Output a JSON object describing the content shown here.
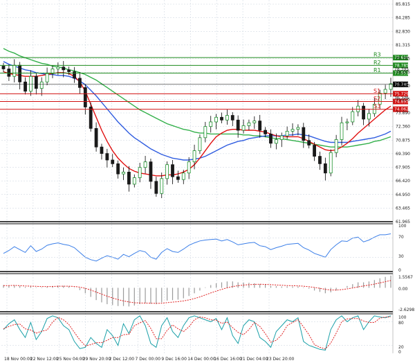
{
  "colors": {
    "background": "#ffffff",
    "grid": "#c8d2dc",
    "bull": "#1a8f2a",
    "bear": "#1a1a1a",
    "ma_fast": "#e01010",
    "ma_mid": "#2f5ce0",
    "ma_slow": "#33b04a",
    "resistance": "#1d8a1d",
    "support": "#d01010",
    "rsi": "#3a7ee8",
    "signal": "#e02020",
    "stoch_main": "#1aa0a8",
    "stoch_signal": "#e02020",
    "current_price": "#000000",
    "frame": "#000000"
  },
  "chart_data": [
    {
      "type": "candlestick",
      "title": "",
      "ylim": [
        61.965,
        85.815
      ],
      "y_ticks": [
        "85.815",
        "84.285",
        "82.830",
        "81.315",
        "79.785",
        "78.255",
        "76.740",
        "75.225",
        "73.890",
        "72.360",
        "70.875",
        "69.390",
        "67.905",
        "66.420",
        "64.950",
        "63.465",
        "61.965"
      ],
      "x_ticks": [
        "18 Nov 00:00",
        "22 Nov 12:00",
        "25 Nov 04:00",
        "29 Nov 20:00",
        "2 Dec 12:00",
        "7 Dec 00:00",
        "9 Dec 16:00",
        "14 Dec 00:00",
        "16 Dec 16:00",
        "21 Dec 04:00",
        "23 Dec 20:00"
      ],
      "levels": [
        {
          "name": "R3",
          "value": 79.618,
          "kind": "resistance",
          "tag": "79.618"
        },
        {
          "name": "R2",
          "value": 78.785,
          "kind": "resistance",
          "tag": "78.785"
        },
        {
          "name": "R1",
          "value": 77.951,
          "kind": "resistance",
          "tag": "77.951"
        },
        {
          "name": "S1",
          "value": 75.729,
          "kind": "support",
          "tag": "75.729"
        },
        {
          "name": "S2",
          "value": 74.895,
          "kind": "support",
          "tag": "74.895"
        },
        {
          "name": "S3",
          "value": 74.062,
          "kind": "support",
          "tag": "74.062"
        }
      ],
      "current_price": {
        "value": 76.74,
        "tag": "76.740"
      },
      "extra_tags": [
        "78.395",
        "75.275"
      ],
      "close_path": [
        78.4,
        77.6,
        78.8,
        77.0,
        76.0,
        77.6,
        76.3,
        77.0,
        77.9,
        78.4,
        78.6,
        78.3,
        78.1,
        77.4,
        76.4,
        74.3,
        72.0,
        70.0,
        69.3,
        68.6,
        68.2,
        67.1,
        67.3,
        66.0,
        66.7,
        67.8,
        68.4,
        66.3,
        65.0,
        66.6,
        68.1,
        66.8,
        66.5,
        67.2,
        68.4,
        69.6,
        71.0,
        72.2,
        72.7,
        73.2,
        72.9,
        73.4,
        72.9,
        71.8,
        72.3,
        72.6,
        72.8,
        71.8,
        71.4,
        70.4,
        70.8,
        71.2,
        71.7,
        71.9,
        72.1,
        70.7,
        70.2,
        69.0,
        68.2,
        67.2,
        69.4,
        70.8,
        72.6,
        72.7,
        73.8,
        74.4,
        73.0,
        73.6,
        74.6,
        75.8,
        76.2,
        76.8
      ],
      "ma_fast": [
        78.1,
        77.9,
        77.8,
        77.7,
        77.6,
        77.6,
        77.6,
        77.7,
        77.8,
        77.9,
        78.0,
        78.0,
        77.9,
        77.6,
        77.0,
        76.0,
        74.6,
        73.2,
        71.8,
        70.6,
        69.6,
        68.8,
        68.2,
        67.7,
        67.4,
        67.2,
        67.1,
        67.0,
        66.9,
        66.9,
        67.0,
        67.0,
        67.1,
        67.3,
        67.6,
        68.1,
        68.8,
        69.6,
        70.4,
        71.1,
        71.5,
        71.8,
        71.9,
        71.9,
        71.8,
        71.8,
        71.8,
        71.7,
        71.6,
        71.4,
        71.2,
        71.1,
        71.1,
        71.1,
        71.1,
        70.9,
        70.6,
        70.3,
        70.0,
        69.7,
        69.6,
        69.7,
        70.0,
        70.4,
        70.9,
        71.5,
        72.0,
        72.5,
        73.0,
        73.5,
        74.0,
        74.4
      ],
      "ma_mid": [
        79.2,
        78.9,
        78.7,
        78.5,
        78.3,
        78.2,
        78.0,
        77.9,
        77.8,
        77.8,
        77.7,
        77.7,
        77.6,
        77.4,
        77.1,
        76.7,
        76.1,
        75.5,
        74.8,
        74.1,
        73.4,
        72.7,
        72.1,
        71.5,
        71.0,
        70.6,
        70.2,
        69.8,
        69.5,
        69.2,
        69.0,
        68.8,
        68.7,
        68.6,
        68.6,
        68.7,
        68.8,
        69.0,
        69.3,
        69.6,
        69.9,
        70.2,
        70.4,
        70.6,
        70.7,
        70.9,
        71.0,
        71.1,
        71.2,
        71.2,
        71.2,
        71.2,
        71.3,
        71.3,
        71.4,
        71.3,
        71.2,
        71.0,
        70.8,
        70.6,
        70.5,
        70.5,
        70.5,
        70.5,
        70.6,
        70.7,
        70.8,
        70.9,
        71.0,
        71.2,
        71.4,
        71.7
      ],
      "ma_slow": [
        80.6,
        80.3,
        80.1,
        79.8,
        79.6,
        79.4,
        79.2,
        79.0,
        78.9,
        78.7,
        78.6,
        78.5,
        78.3,
        78.2,
        78.0,
        77.8,
        77.5,
        77.2,
        76.8,
        76.4,
        76.0,
        75.6,
        75.2,
        74.8,
        74.4,
        74.0,
        73.7,
        73.4,
        73.1,
        72.8,
        72.5,
        72.3,
        72.1,
        71.9,
        71.8,
        71.6,
        71.5,
        71.5,
        71.4,
        71.4,
        71.4,
        71.4,
        71.4,
        71.4,
        71.3,
        71.3,
        71.2,
        71.2,
        71.1,
        71.0,
        70.9,
        70.9,
        70.8,
        70.7,
        70.6,
        70.5,
        70.4,
        70.3,
        70.2,
        70.1,
        70.0,
        70.0,
        70.0,
        70.0,
        70.1,
        70.2,
        70.3,
        70.4,
        70.6,
        70.7,
        70.9,
        71.1
      ]
    },
    {
      "type": "line",
      "title": "",
      "ylim": [
        0,
        100
      ],
      "y_ticks": [
        "100",
        "70",
        "30",
        "0"
      ],
      "series": [
        {
          "values": [
            38,
            44,
            52,
            46,
            40,
            54,
            42,
            47,
            55,
            58,
            60,
            57,
            55,
            50,
            40,
            30,
            25,
            22,
            28,
            33,
            30,
            26,
            36,
            31,
            38,
            44,
            41,
            30,
            26,
            40,
            48,
            42,
            40,
            47,
            55,
            60,
            64,
            66,
            67,
            68,
            64,
            67,
            62,
            56,
            58,
            60,
            61,
            54,
            52,
            46,
            50,
            53,
            57,
            58,
            59,
            50,
            45,
            38,
            34,
            30,
            46,
            56,
            64,
            63,
            70,
            72,
            62,
            66,
            72,
            77,
            77,
            79
          ]
        }
      ]
    },
    {
      "type": "bar",
      "title": "",
      "ylim": [
        -2.6298,
        1.5567
      ],
      "y_ticks": [
        "1.5567",
        "0.00",
        "-2.6298"
      ],
      "histogram": [
        0.3,
        0.25,
        0.28,
        0.2,
        0.1,
        0.15,
        0.05,
        0.05,
        0.12,
        0.2,
        0.25,
        0.22,
        0.18,
        0.05,
        -0.25,
        -0.6,
        -1.0,
        -1.35,
        -1.6,
        -1.8,
        -1.9,
        -2.0,
        -2.0,
        -2.05,
        -1.95,
        -1.8,
        -1.7,
        -1.75,
        -1.8,
        -1.6,
        -1.4,
        -1.35,
        -1.3,
        -1.15,
        -0.9,
        -0.6,
        -0.3,
        0.05,
        0.3,
        0.5,
        0.6,
        0.7,
        0.7,
        0.6,
        0.58,
        0.55,
        0.5,
        0.42,
        0.35,
        0.22,
        0.18,
        0.15,
        0.15,
        0.15,
        0.15,
        0.05,
        -0.1,
        -0.3,
        -0.45,
        -0.6,
        -0.5,
        -0.3,
        0.0,
        0.2,
        0.4,
        0.6,
        0.6,
        0.7,
        0.85,
        1.05,
        1.2,
        1.35
      ],
      "signal": [
        0.25,
        0.25,
        0.26,
        0.24,
        0.2,
        0.19,
        0.16,
        0.14,
        0.13,
        0.15,
        0.17,
        0.18,
        0.18,
        0.15,
        0.07,
        -0.06,
        -0.25,
        -0.47,
        -0.7,
        -0.92,
        -1.12,
        -1.3,
        -1.44,
        -1.56,
        -1.64,
        -1.67,
        -1.68,
        -1.69,
        -1.71,
        -1.69,
        -1.63,
        -1.57,
        -1.52,
        -1.44,
        -1.33,
        -1.18,
        -1.0,
        -0.79,
        -0.57,
        -0.36,
        -0.17,
        0.0,
        0.14,
        0.23,
        0.3,
        0.35,
        0.38,
        0.39,
        0.38,
        0.35,
        0.31,
        0.28,
        0.25,
        0.23,
        0.21,
        0.18,
        0.12,
        0.04,
        -0.06,
        -0.17,
        -0.24,
        -0.25,
        -0.2,
        -0.12,
        -0.02,
        0.1,
        0.2,
        0.3,
        0.41,
        0.54,
        0.67,
        0.8
      ]
    },
    {
      "type": "line",
      "title": "",
      "ylim": [
        0,
        100
      ],
      "y_ticks": [
        "100",
        "80",
        "20",
        "0"
      ],
      "series": [
        {
          "values": [
            60,
            75,
            85,
            60,
            40,
            78,
            35,
            55,
            88,
            95,
            90,
            70,
            60,
            30,
            12,
            15,
            40,
            25,
            15,
            60,
            45,
            20,
            75,
            50,
            85,
            95,
            70,
            25,
            15,
            70,
            90,
            55,
            40,
            70,
            90,
            95,
            90,
            85,
            80,
            88,
            60,
            90,
            45,
            25,
            70,
            85,
            80,
            40,
            30,
            15,
            55,
            70,
            85,
            80,
            90,
            30,
            20,
            15,
            10,
            8,
            60,
            85,
            95,
            80,
            90,
            95,
            60,
            80,
            95,
            92,
            90,
            95
          ]
        },
        {
          "values": [
            62,
            68,
            73,
            74,
            62,
            59,
            51,
            56,
            59,
            79,
            91,
            85,
            73,
            53,
            34,
            19,
            22,
            27,
            27,
            33,
            40,
            40,
            47,
            48,
            70,
            77,
            83,
            63,
            37,
            37,
            58,
            72,
            62,
            55,
            67,
            85,
            92,
            90,
            85,
            84,
            76,
            79,
            65,
            53,
            47,
            60,
            78,
            68,
            50,
            28,
            33,
            47,
            70,
            78,
            85,
            67,
            47,
            22,
            15,
            11,
            26,
            51,
            80,
            87,
            88,
            88,
            82,
            78,
            78,
            89,
            92,
            92
          ]
        }
      ]
    }
  ]
}
